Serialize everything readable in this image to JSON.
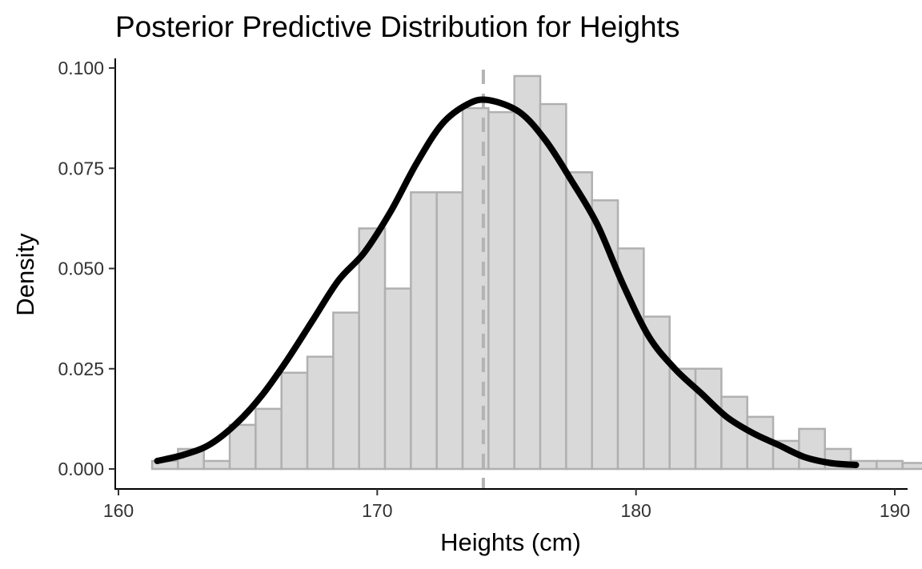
{
  "chart_data": {
    "type": "histogram",
    "title": "Posterior Predictive Distribution for Heights",
    "xlabel": "Heights (cm)",
    "ylabel": "Density",
    "xlim": [
      160,
      190
    ],
    "ylim": [
      0,
      0.1
    ],
    "x_ticks": [
      160,
      170,
      180,
      190
    ],
    "x_tick_labels": [
      "160",
      "170",
      "180",
      "190"
    ],
    "y_ticks": [
      0,
      0.025,
      0.05,
      0.075,
      0.1
    ],
    "y_tick_labels": [
      "0.000",
      "0.025",
      "0.050",
      "0.075",
      "0.100"
    ],
    "grid": false,
    "legend": "none",
    "bins": [
      {
        "x0": 161.3,
        "x1": 162.3,
        "density": 0.002
      },
      {
        "x0": 162.3,
        "x1": 163.3,
        "density": 0.005
      },
      {
        "x0": 163.3,
        "x1": 164.3,
        "density": 0.002
      },
      {
        "x0": 164.3,
        "x1": 165.3,
        "density": 0.011
      },
      {
        "x0": 165.3,
        "x1": 166.3,
        "density": 0.015
      },
      {
        "x0": 166.3,
        "x1": 167.3,
        "density": 0.024
      },
      {
        "x0": 167.3,
        "x1": 168.3,
        "density": 0.028
      },
      {
        "x0": 168.3,
        "x1": 169.3,
        "density": 0.039
      },
      {
        "x0": 169.3,
        "x1": 170.3,
        "density": 0.06
      },
      {
        "x0": 170.3,
        "x1": 171.3,
        "density": 0.045
      },
      {
        "x0": 171.3,
        "x1": 172.3,
        "density": 0.069
      },
      {
        "x0": 172.3,
        "x1": 173.3,
        "density": 0.069
      },
      {
        "x0": 173.3,
        "x1": 174.3,
        "density": 0.09
      },
      {
        "x0": 174.3,
        "x1": 175.3,
        "density": 0.089
      },
      {
        "x0": 175.3,
        "x1": 176.3,
        "density": 0.098
      },
      {
        "x0": 176.3,
        "x1": 177.3,
        "density": 0.091
      },
      {
        "x0": 177.3,
        "x1": 178.3,
        "density": 0.074
      },
      {
        "x0": 178.3,
        "x1": 179.3,
        "density": 0.067
      },
      {
        "x0": 179.3,
        "x1": 180.3,
        "density": 0.055
      },
      {
        "x0": 180.3,
        "x1": 181.3,
        "density": 0.038
      },
      {
        "x0": 181.3,
        "x1": 182.3,
        "density": 0.025
      },
      {
        "x0": 182.3,
        "x1": 183.3,
        "density": 0.025
      },
      {
        "x0": 183.3,
        "x1": 184.3,
        "density": 0.018
      },
      {
        "x0": 184.3,
        "x1": 185.3,
        "density": 0.013
      },
      {
        "x0": 185.3,
        "x1": 186.3,
        "density": 0.007
      },
      {
        "x0": 186.3,
        "x1": 187.3,
        "density": 0.01
      },
      {
        "x0": 187.3,
        "x1": 188.3,
        "density": 0.005
      },
      {
        "x0": 188.3,
        "x1": 189.3,
        "density": 0.002
      },
      {
        "x0": 189.3,
        "x1": 190.3,
        "density": 0.002
      },
      {
        "x0": 190.3,
        "x1": 191.3,
        "density": 0.0015
      }
    ],
    "mean_line": {
      "x": 174.1,
      "style": "dashed"
    },
    "density_curve": {
      "x": [
        161.5,
        162.5,
        163.5,
        164.5,
        165.5,
        166.5,
        167.5,
        168.5,
        169.5,
        170.5,
        171.5,
        172.5,
        173.5,
        174.3,
        175.5,
        176.5,
        177.5,
        178.5,
        179.5,
        180.5,
        181.5,
        182.5,
        183.5,
        184.5,
        185.5,
        186.5,
        187.5,
        188.5
      ],
      "y": [
        0.002,
        0.0035,
        0.006,
        0.011,
        0.018,
        0.027,
        0.037,
        0.047,
        0.054,
        0.064,
        0.076,
        0.086,
        0.091,
        0.092,
        0.089,
        0.082,
        0.072,
        0.061,
        0.046,
        0.033,
        0.025,
        0.019,
        0.013,
        0.009,
        0.006,
        0.003,
        0.0015,
        0.001
      ]
    },
    "colors": {
      "bar_fill": "#d9d9d9",
      "bar_outline": "#b0b0b0",
      "density_line": "#000000",
      "mean_line": "#b3b3b3"
    }
  }
}
